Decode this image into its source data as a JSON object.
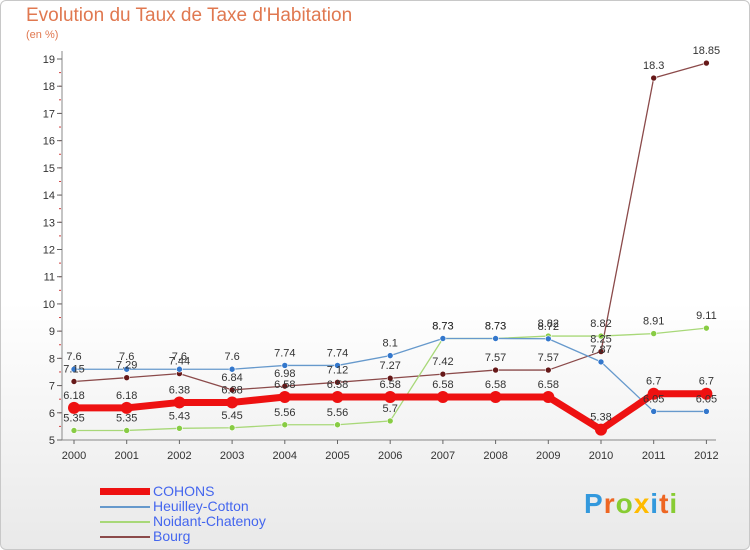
{
  "header": {
    "title": "Evolution du Taux de Taxe d'Habitation",
    "subtitle": "(en %)"
  },
  "chart_data": {
    "type": "line",
    "x": [
      "2000",
      "2001",
      "2002",
      "2003",
      "2004",
      "2005",
      "2006",
      "2007",
      "2008",
      "2009",
      "2010",
      "2011",
      "2012"
    ],
    "ylim": [
      5,
      19
    ],
    "yticks": [
      5,
      6,
      7,
      8,
      9,
      10,
      11,
      12,
      13,
      14,
      15,
      16,
      17,
      18,
      19
    ],
    "grid": false,
    "legend_position": "bottom-left",
    "series": [
      {
        "name": "COHONS",
        "color": "#ee1111",
        "width": 7,
        "marker": 6,
        "values": [
          6.18,
          6.18,
          6.38,
          6.38,
          6.58,
          6.58,
          6.58,
          6.58,
          6.58,
          6.58,
          5.38,
          6.7,
          6.7
        ],
        "labels": [
          "6.18",
          "6.18",
          "6.38",
          "6.38",
          "6.58",
          "6.58",
          "6.58",
          "6.58",
          "6.58",
          "6.58",
          "5.38",
          "6.7",
          "6.7"
        ]
      },
      {
        "name": "Heuilley-Cotton",
        "color": "#6699cc",
        "width": 1.3,
        "marker": 3,
        "marker_color": "#3377cc",
        "values": [
          7.6,
          7.6,
          7.6,
          7.6,
          7.74,
          7.74,
          8.1,
          8.73,
          8.73,
          8.72,
          7.87,
          6.05,
          6.05
        ],
        "labels": [
          "7.6",
          "7.6",
          "7.6",
          "7.6",
          "7.74",
          "7.74",
          "8.1",
          "8.73",
          "8.73",
          "8.72",
          "7.87",
          "6.05",
          "6.05"
        ]
      },
      {
        "name": "Noidant-Chatenoy",
        "color": "#a8d878",
        "width": 1.3,
        "marker": 3,
        "marker_color": "#88cc44",
        "values": [
          5.35,
          5.35,
          5.43,
          5.45,
          5.56,
          5.56,
          5.7,
          8.73,
          8.73,
          8.82,
          8.82,
          8.91,
          9.11
        ],
        "labels": [
          "5.35",
          "5.35",
          "5.43",
          "5.45",
          "5.56",
          "5.56",
          "5.7",
          "8.73",
          "8.73",
          "8.82",
          "8.82",
          "8.91",
          "9.11"
        ]
      },
      {
        "name": "Bourg",
        "color": "#8b4a4a",
        "width": 1.3,
        "marker": 3,
        "marker_color": "#661818",
        "values": [
          7.15,
          7.29,
          7.44,
          6.84,
          6.98,
          7.12,
          7.27,
          7.42,
          7.57,
          7.57,
          8.25,
          18.3,
          18.85
        ],
        "labels": [
          "7.15",
          "7.29",
          "7.44",
          "6.84",
          "6.98",
          "7.12",
          "7.27",
          "7.42",
          "7.57",
          "7.57",
          "8.25",
          "18.3",
          "18.85"
        ]
      }
    ]
  },
  "logo": {
    "letters": [
      {
        "ch": "P",
        "color": "#3399dd"
      },
      {
        "ch": "r",
        "color": "#ee6622"
      },
      {
        "ch": "o",
        "color": "#88cc33"
      },
      {
        "ch": "x",
        "color": "#ffbb00"
      },
      {
        "ch": "i",
        "color": "#3399dd"
      },
      {
        "ch": "t",
        "color": "#ee6622"
      },
      {
        "ch": "i",
        "color": "#88cc33"
      }
    ]
  }
}
